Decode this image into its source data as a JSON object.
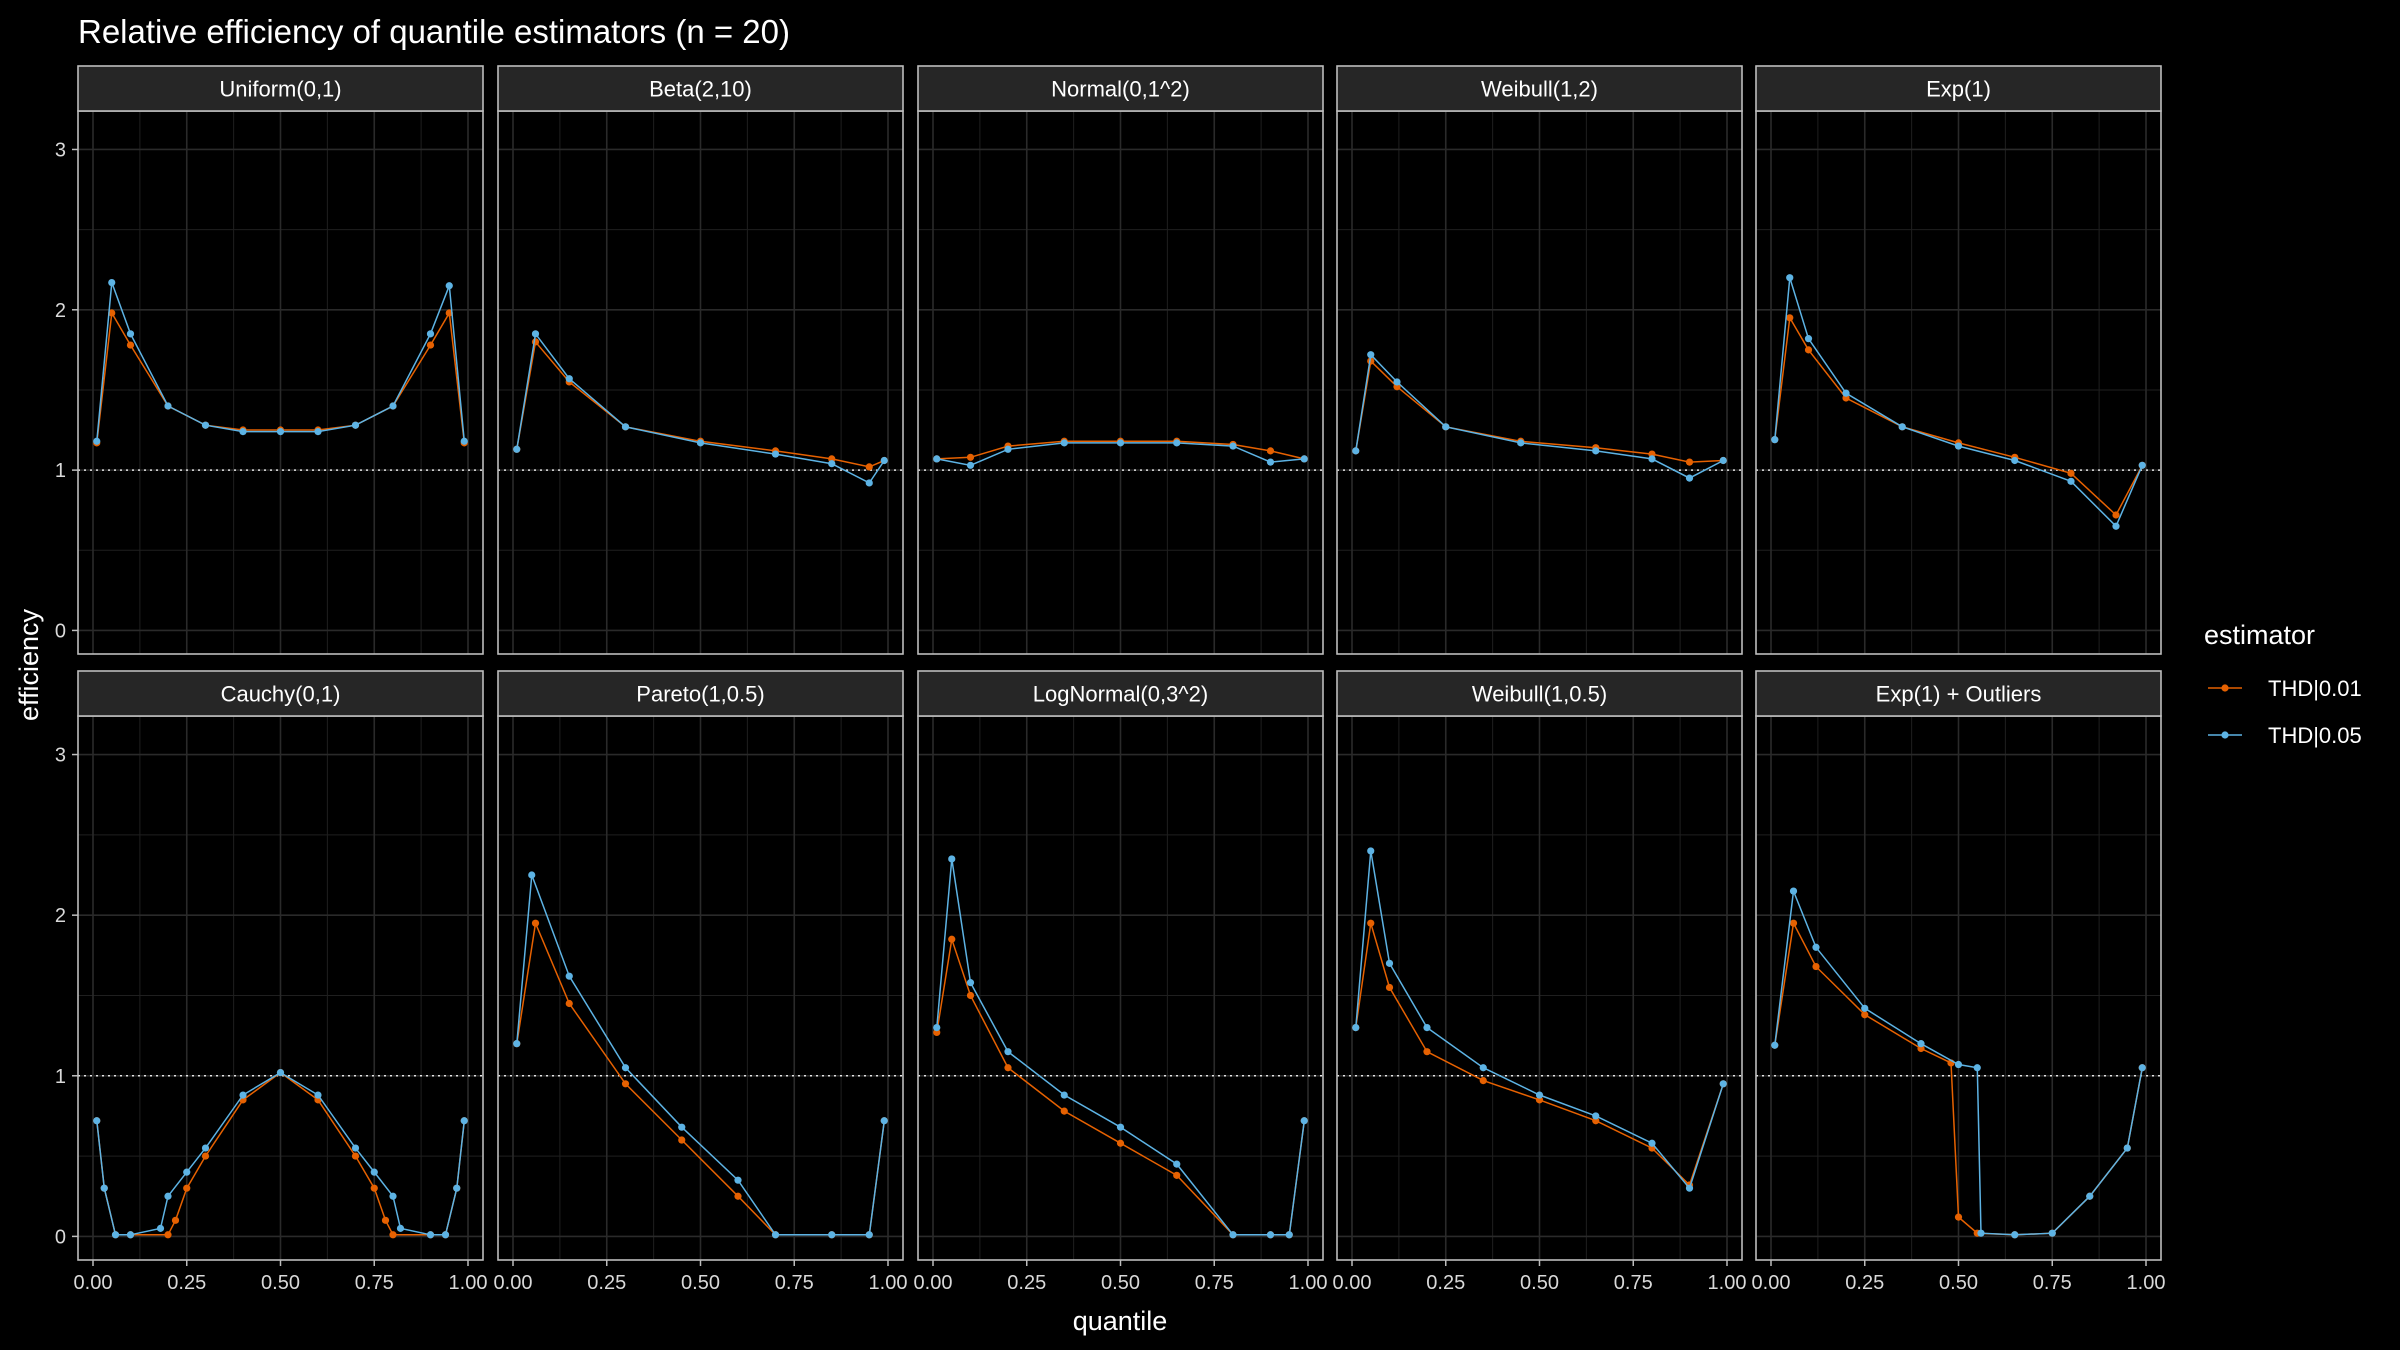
{
  "chart_data": {
    "type": "line",
    "title": "Relative efficiency of quantile estimators (n = 20)",
    "xlabel": "quantile",
    "ylabel": "efficiency",
    "xlim": [
      0,
      1
    ],
    "ylim": [
      0,
      3
    ],
    "x_ticks": [
      "0.00",
      "0.25",
      "0.50",
      "0.75",
      "1.00"
    ],
    "y_ticks": [
      "0",
      "1",
      "2",
      "3"
    ],
    "reference_line": 1,
    "grid": true,
    "legend": {
      "title": "estimator",
      "position": "right",
      "entries": [
        {
          "name": "THD|0.01",
          "color": "#E66101"
        },
        {
          "name": "THD|0.05",
          "color": "#5DB3E4"
        }
      ]
    },
    "panels": [
      {
        "title": "Uniform(0,1)",
        "series": [
          {
            "name": "THD|0.01",
            "x": [
              0.01,
              0.05,
              0.1,
              0.2,
              0.3,
              0.4,
              0.5,
              0.6,
              0.7,
              0.8,
              0.9,
              0.95,
              0.99
            ],
            "y": [
              1.17,
              1.98,
              1.78,
              1.4,
              1.28,
              1.25,
              1.25,
              1.25,
              1.28,
              1.4,
              1.78,
              1.98,
              1.17
            ]
          },
          {
            "name": "THD|0.05",
            "x": [
              0.01,
              0.05,
              0.1,
              0.2,
              0.3,
              0.4,
              0.5,
              0.6,
              0.7,
              0.8,
              0.9,
              0.95,
              0.99
            ],
            "y": [
              1.18,
              2.17,
              1.85,
              1.4,
              1.28,
              1.24,
              1.24,
              1.24,
              1.28,
              1.4,
              1.85,
              2.15,
              1.18
            ]
          }
        ]
      },
      {
        "title": "Beta(2,10)",
        "series": [
          {
            "name": "THD|0.01",
            "x": [
              0.01,
              0.06,
              0.15,
              0.3,
              0.5,
              0.7,
              0.85,
              0.95,
              0.99
            ],
            "y": [
              1.13,
              1.8,
              1.55,
              1.27,
              1.18,
              1.12,
              1.07,
              1.02,
              1.06
            ]
          },
          {
            "name": "THD|0.05",
            "x": [
              0.01,
              0.06,
              0.15,
              0.3,
              0.5,
              0.7,
              0.85,
              0.95,
              0.99
            ],
            "y": [
              1.13,
              1.85,
              1.57,
              1.27,
              1.17,
              1.1,
              1.04,
              0.92,
              1.06
            ]
          }
        ]
      },
      {
        "title": "Normal(0,1^2)",
        "series": [
          {
            "name": "THD|0.01",
            "x": [
              0.01,
              0.1,
              0.2,
              0.35,
              0.5,
              0.65,
              0.8,
              0.9,
              0.99
            ],
            "y": [
              1.07,
              1.08,
              1.15,
              1.18,
              1.18,
              1.18,
              1.16,
              1.12,
              1.07
            ]
          },
          {
            "name": "THD|0.05",
            "x": [
              0.01,
              0.1,
              0.2,
              0.35,
              0.5,
              0.65,
              0.8,
              0.9,
              0.99
            ],
            "y": [
              1.07,
              1.03,
              1.13,
              1.17,
              1.17,
              1.17,
              1.15,
              1.05,
              1.07
            ]
          }
        ]
      },
      {
        "title": "Weibull(1,2)",
        "series": [
          {
            "name": "THD|0.01",
            "x": [
              0.01,
              0.05,
              0.12,
              0.25,
              0.45,
              0.65,
              0.8,
              0.9,
              0.99
            ],
            "y": [
              1.12,
              1.68,
              1.52,
              1.27,
              1.18,
              1.14,
              1.1,
              1.05,
              1.06
            ]
          },
          {
            "name": "THD|0.05",
            "x": [
              0.01,
              0.05,
              0.12,
              0.25,
              0.45,
              0.65,
              0.8,
              0.9,
              0.99
            ],
            "y": [
              1.12,
              1.72,
              1.55,
              1.27,
              1.17,
              1.12,
              1.07,
              0.95,
              1.06
            ]
          }
        ]
      },
      {
        "title": "Exp(1)",
        "series": [
          {
            "name": "THD|0.01",
            "x": [
              0.01,
              0.05,
              0.1,
              0.2,
              0.35,
              0.5,
              0.65,
              0.8,
              0.92,
              0.99
            ],
            "y": [
              1.19,
              1.95,
              1.75,
              1.45,
              1.27,
              1.17,
              1.08,
              0.98,
              0.72,
              1.03
            ]
          },
          {
            "name": "THD|0.05",
            "x": [
              0.01,
              0.05,
              0.1,
              0.2,
              0.35,
              0.5,
              0.65,
              0.8,
              0.92,
              0.99
            ],
            "y": [
              1.19,
              2.2,
              1.82,
              1.48,
              1.27,
              1.15,
              1.06,
              0.93,
              0.65,
              1.03
            ]
          }
        ]
      },
      {
        "title": "Cauchy(0,1)",
        "series": [
          {
            "name": "THD|0.01",
            "x": [
              0.01,
              0.03,
              0.06,
              0.1,
              0.2,
              0.22,
              0.25,
              0.3,
              0.4,
              0.5,
              0.6,
              0.7,
              0.75,
              0.78,
              0.8,
              0.9,
              0.94,
              0.97,
              0.99
            ],
            "y": [
              0.72,
              0.3,
              0.01,
              0.01,
              0.01,
              0.1,
              0.3,
              0.5,
              0.85,
              1.02,
              0.85,
              0.5,
              0.3,
              0.1,
              0.01,
              0.01,
              0.01,
              0.3,
              0.72
            ]
          },
          {
            "name": "THD|0.05",
            "x": [
              0.01,
              0.03,
              0.06,
              0.1,
              0.18,
              0.2,
              0.25,
              0.3,
              0.4,
              0.5,
              0.6,
              0.7,
              0.75,
              0.8,
              0.82,
              0.9,
              0.94,
              0.97,
              0.99
            ],
            "y": [
              0.72,
              0.3,
              0.01,
              0.01,
              0.05,
              0.25,
              0.4,
              0.55,
              0.88,
              1.02,
              0.88,
              0.55,
              0.4,
              0.25,
              0.05,
              0.01,
              0.01,
              0.3,
              0.72
            ]
          }
        ]
      },
      {
        "title": "Pareto(1,0.5)",
        "series": [
          {
            "name": "THD|0.01",
            "x": [
              0.01,
              0.06,
              0.15,
              0.3,
              0.45,
              0.6,
              0.7,
              0.85,
              0.95,
              0.99
            ],
            "y": [
              1.2,
              1.95,
              1.45,
              0.95,
              0.6,
              0.25,
              0.01,
              0.01,
              0.01,
              0.72
            ]
          },
          {
            "name": "THD|0.05",
            "x": [
              0.01,
              0.05,
              0.15,
              0.3,
              0.45,
              0.6,
              0.7,
              0.85,
              0.95,
              0.99
            ],
            "y": [
              1.2,
              2.25,
              1.62,
              1.05,
              0.68,
              0.35,
              0.01,
              0.01,
              0.01,
              0.72
            ]
          }
        ]
      },
      {
        "title": "LogNormal(0,3^2)",
        "series": [
          {
            "name": "THD|0.01",
            "x": [
              0.01,
              0.05,
              0.1,
              0.2,
              0.35,
              0.5,
              0.65,
              0.8,
              0.9,
              0.95,
              0.99
            ],
            "y": [
              1.27,
              1.85,
              1.5,
              1.05,
              0.78,
              0.58,
              0.38,
              0.01,
              0.01,
              0.01,
              0.72
            ]
          },
          {
            "name": "THD|0.05",
            "x": [
              0.01,
              0.05,
              0.1,
              0.2,
              0.35,
              0.5,
              0.65,
              0.8,
              0.9,
              0.95,
              0.99
            ],
            "y": [
              1.3,
              2.35,
              1.58,
              1.15,
              0.88,
              0.68,
              0.45,
              0.01,
              0.01,
              0.01,
              0.72
            ]
          }
        ]
      },
      {
        "title": "Weibull(1,0.5)",
        "series": [
          {
            "name": "THD|0.01",
            "x": [
              0.01,
              0.05,
              0.1,
              0.2,
              0.35,
              0.5,
              0.65,
              0.8,
              0.9,
              0.99
            ],
            "y": [
              1.3,
              1.95,
              1.55,
              1.15,
              0.97,
              0.85,
              0.72,
              0.55,
              0.32,
              0.95
            ]
          },
          {
            "name": "THD|0.05",
            "x": [
              0.01,
              0.05,
              0.1,
              0.2,
              0.35,
              0.5,
              0.65,
              0.8,
              0.9,
              0.99
            ],
            "y": [
              1.3,
              2.4,
              1.7,
              1.3,
              1.05,
              0.88,
              0.75,
              0.58,
              0.3,
              0.95
            ]
          }
        ]
      },
      {
        "title": "Exp(1) + Outliers",
        "series": [
          {
            "name": "THD|0.01",
            "x": [
              0.01,
              0.06,
              0.12,
              0.25,
              0.4,
              0.48,
              0.5,
              0.55,
              0.65,
              0.75,
              0.85,
              0.95,
              0.99
            ],
            "y": [
              1.19,
              1.95,
              1.68,
              1.38,
              1.17,
              1.08,
              0.12,
              0.02,
              0.01,
              0.02,
              0.25,
              0.55,
              1.05
            ]
          },
          {
            "name": "THD|0.05",
            "x": [
              0.01,
              0.06,
              0.12,
              0.25,
              0.4,
              0.5,
              0.55,
              0.56,
              0.65,
              0.75,
              0.85,
              0.95,
              0.99
            ],
            "y": [
              1.19,
              2.15,
              1.8,
              1.42,
              1.2,
              1.07,
              1.05,
              0.02,
              0.01,
              0.02,
              0.25,
              0.55,
              1.05
            ]
          }
        ]
      }
    ]
  }
}
